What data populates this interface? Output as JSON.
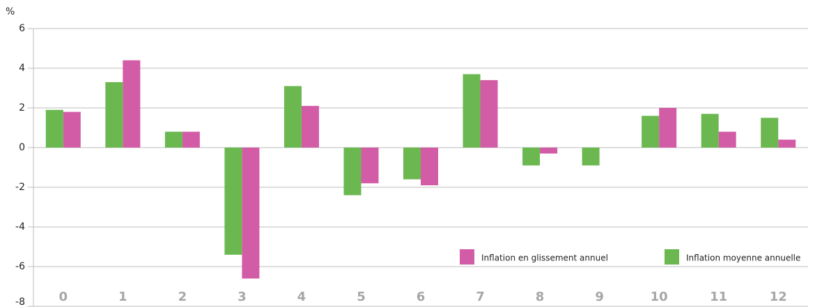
{
  "chart_data": {
    "type": "bar",
    "y_unit": "%",
    "categories": [
      "0",
      "1",
      "2",
      "3",
      "4",
      "5",
      "6",
      "7",
      "8",
      "9",
      "10",
      "11",
      "12"
    ],
    "series": [
      {
        "name": "Inflation en glissement annuel",
        "color": "#d35ca6",
        "values": [
          1.8,
          4.4,
          0.8,
          -6.6,
          2.1,
          -1.8,
          -1.9,
          3.4,
          -0.3,
          null,
          2.0,
          0.8,
          0.4
        ]
      },
      {
        "name": "Inflation moyenne annuelle",
        "color": "#6ab84f",
        "values": [
          1.9,
          3.3,
          0.8,
          -5.4,
          3.1,
          -2.4,
          -1.6,
          3.7,
          -0.9,
          -0.9,
          1.6,
          1.7,
          1.5
        ]
      }
    ],
    "ylim": [
      -8,
      6
    ],
    "yticks": [
      -8,
      -6,
      -4,
      -2,
      0,
      2,
      4,
      6
    ],
    "grid": true,
    "legend": "lower right"
  }
}
